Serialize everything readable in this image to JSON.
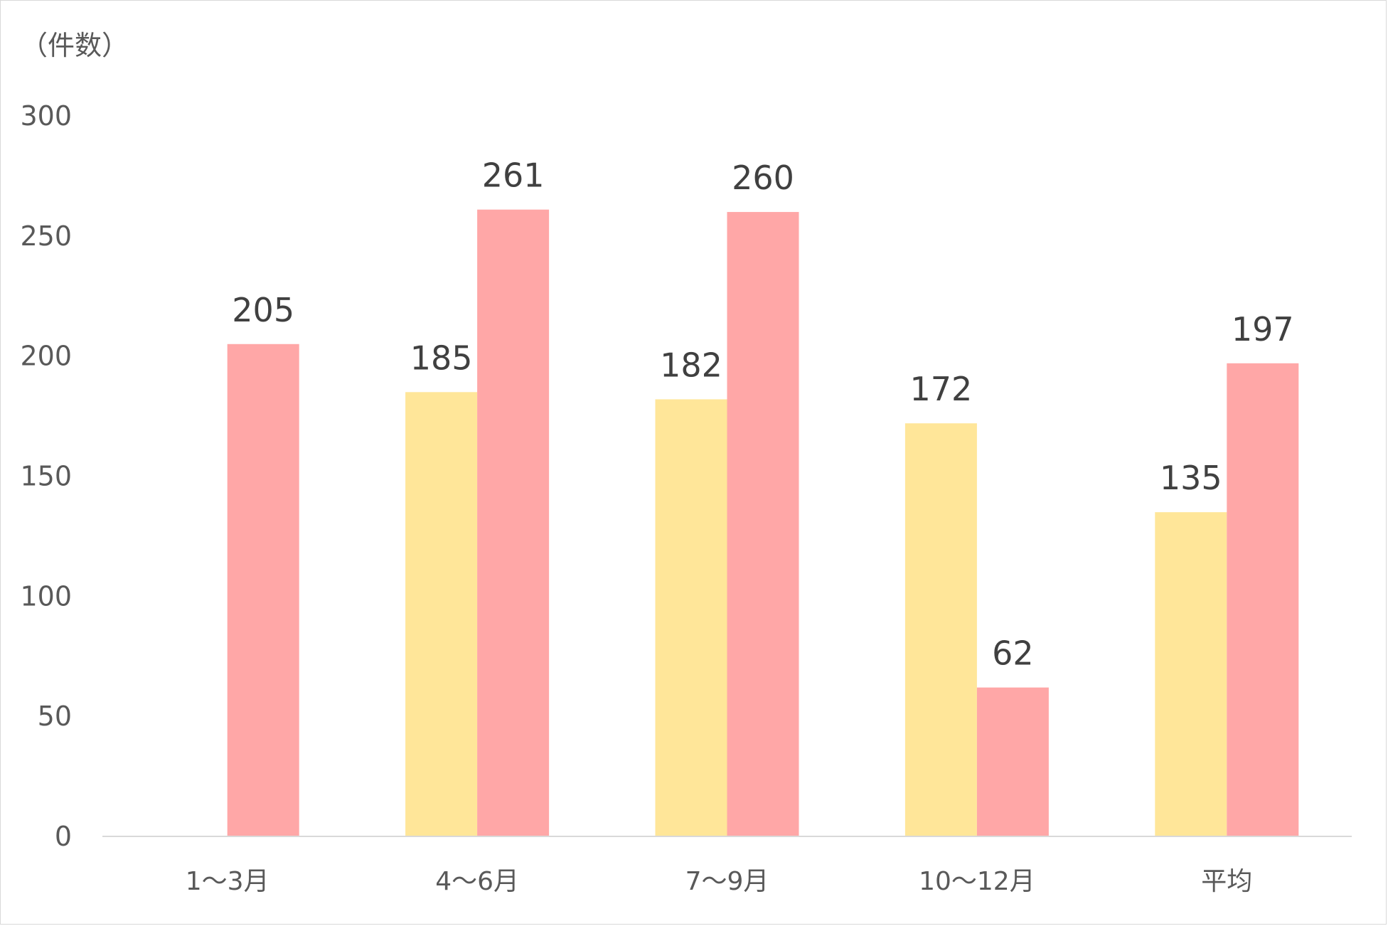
{
  "chart_data": {
    "type": "bar",
    "ylabel": "（件数）",
    "categories": [
      "1～3月",
      "4～6月",
      "7～9月",
      "10～12月",
      "平均"
    ],
    "ylim": [
      0,
      300
    ],
    "yticks": [
      0,
      50,
      100,
      150,
      200,
      250,
      300
    ],
    "grid": false,
    "series": [
      {
        "values": [
          null,
          185,
          182,
          172,
          135
        ],
        "color": "#FFE699"
      },
      {
        "values": [
          205,
          261,
          260,
          62,
          197
        ],
        "color": "#FFA7A7"
      }
    ]
  }
}
